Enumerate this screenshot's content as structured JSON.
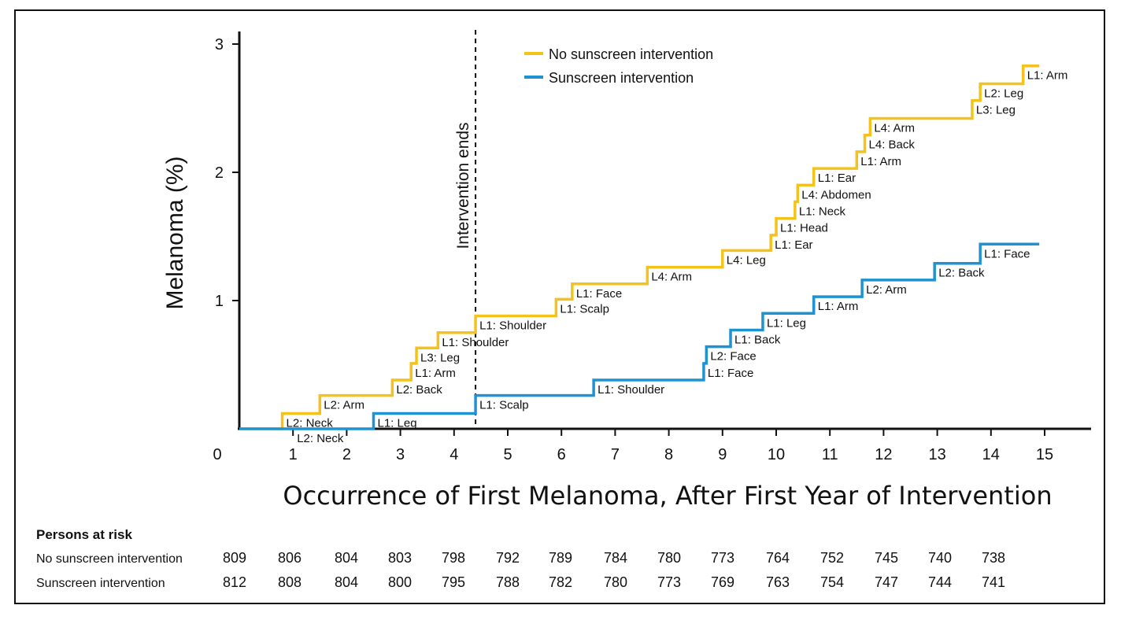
{
  "chart_data": {
    "type": "line",
    "step": true,
    "xlabel": "Occurrence of First Melanoma, After First Year of Intervention",
    "ylabel": "Melanoma (%)",
    "xlim": [
      0,
      15.3
    ],
    "ylim": [
      0,
      3.1
    ],
    "x_ticks": [
      0,
      1,
      2,
      3,
      4,
      5,
      6,
      7,
      8,
      9,
      10,
      11,
      12,
      13,
      14,
      15
    ],
    "y_ticks": [
      1,
      2,
      3
    ],
    "annotation": {
      "text": "Intervention ends",
      "x": 4.4
    },
    "series": [
      {
        "name": "No sunscreen intervention",
        "color": "#f5c21b",
        "end_x": 14.9,
        "steps": [
          {
            "x": 0.8,
            "y": 0.12,
            "label": "L2: Neck"
          },
          {
            "x": 1.5,
            "y": 0.26,
            "label": "L2: Arm"
          },
          {
            "x": 2.85,
            "y": 0.38,
            "label": "L2: Back"
          },
          {
            "x": 3.2,
            "y": 0.51,
            "label": "L1: Arm"
          },
          {
            "x": 3.3,
            "y": 0.63,
            "label": "L3: Leg"
          },
          {
            "x": 3.7,
            "y": 0.75,
            "label": "L1: Shoulder"
          },
          {
            "x": 4.4,
            "y": 0.88,
            "label": "L1: Shoulder"
          },
          {
            "x": 5.9,
            "y": 1.01,
            "label": "L1: Scalp"
          },
          {
            "x": 6.2,
            "y": 1.13,
            "label": "L1: Face"
          },
          {
            "x": 7.6,
            "y": 1.26,
            "label": "L4: Arm"
          },
          {
            "x": 9.0,
            "y": 1.39,
            "label": "L4: Leg"
          },
          {
            "x": 9.9,
            "y": 1.51,
            "label": "L1: Ear"
          },
          {
            "x": 10.0,
            "y": 1.64,
            "label": "L1: Head"
          },
          {
            "x": 10.35,
            "y": 1.77,
            "label": "L1: Neck"
          },
          {
            "x": 10.4,
            "y": 1.9,
            "label": "L4: Abdomen"
          },
          {
            "x": 10.7,
            "y": 2.03,
            "label": "L1: Ear"
          },
          {
            "x": 11.5,
            "y": 2.16,
            "label": "L1: Arm"
          },
          {
            "x": 11.65,
            "y": 2.29,
            "label": "L4: Back"
          },
          {
            "x": 11.75,
            "y": 2.42,
            "label": "L4: Arm"
          },
          {
            "x": 13.65,
            "y": 2.56,
            "label": "L3: Leg"
          },
          {
            "x": 13.8,
            "y": 2.69,
            "label": "L2: Leg"
          },
          {
            "x": 14.6,
            "y": 2.83,
            "label": "L1: Arm"
          }
        ]
      },
      {
        "name": "Sunscreen intervention",
        "color": "#1f93d2",
        "end_x": 14.9,
        "steps": [
          {
            "x": 1.0,
            "y": 0.0,
            "label": "L2: Neck"
          },
          {
            "x": 2.5,
            "y": 0.12,
            "label": "L1: Leg"
          },
          {
            "x": 4.4,
            "y": 0.26,
            "label": "L1: Scalp"
          },
          {
            "x": 6.6,
            "y": 0.38,
            "label": "L1: Shoulder"
          },
          {
            "x": 8.65,
            "y": 0.51,
            "label": "L1: Face"
          },
          {
            "x": 8.7,
            "y": 0.64,
            "label": "L2: Face"
          },
          {
            "x": 9.15,
            "y": 0.77,
            "label": "L1: Back"
          },
          {
            "x": 9.75,
            "y": 0.9,
            "label": "L1: Leg"
          },
          {
            "x": 10.7,
            "y": 1.03,
            "label": "L1: Arm"
          },
          {
            "x": 11.6,
            "y": 1.16,
            "label": "L2: Arm"
          },
          {
            "x": 12.95,
            "y": 1.29,
            "label": "L2: Back"
          },
          {
            "x": 13.8,
            "y": 1.44,
            "label": "L1: Face"
          }
        ]
      }
    ]
  },
  "risk_table": {
    "title": "Persons at risk",
    "rows": [
      {
        "name": "No sunscreen intervention",
        "values": [
          "809",
          "806",
          "804",
          "803",
          "798",
          "792",
          "789",
          "784",
          "780",
          "773",
          "764",
          "752",
          "745",
          "740",
          "738"
        ]
      },
      {
        "name": "Sunscreen intervention",
        "values": [
          "812",
          "808",
          "804",
          "800",
          "795",
          "788",
          "782",
          "780",
          "773",
          "769",
          "763",
          "754",
          "747",
          "744",
          "741"
        ]
      }
    ]
  }
}
